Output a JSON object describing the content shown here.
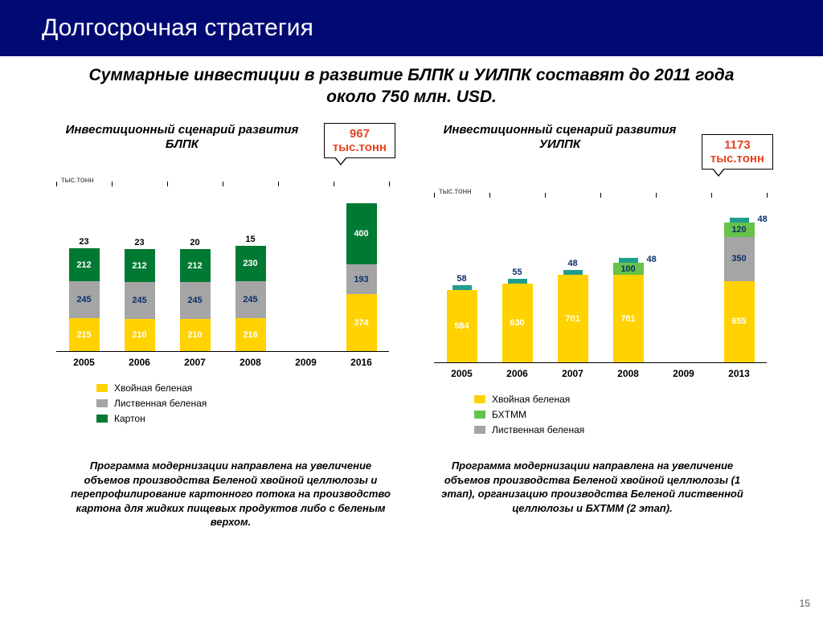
{
  "title": "Долгосрочная стратегия",
  "subtitle": "Суммарные инвестиции в развитие БЛПК и УИЛПК составят до 2011 года около 750 млн. USD.",
  "pagenum": "15",
  "colors": {
    "yellow": "#ffd200",
    "grey": "#a5a5a5",
    "dgreen": "#007a33",
    "lgreen": "#66c24a",
    "teal": "#1f9e8e",
    "navy": "#0b2f6b",
    "axis": "#000000",
    "label_white": "#ffffff",
    "label_navy": "#0b2f6b",
    "label_black": "#000000",
    "callout_text": "#e4451f",
    "title_bg": "#000a72"
  },
  "chart_left": {
    "title": "Инвестиционный сценарий развития БЛПК",
    "callout_value": "967",
    "callout_unit": "тыс.тонн",
    "ylabel": "тыс.тонн",
    "scale": 0.19,
    "categories": [
      "2005",
      "2006",
      "2007",
      "2008",
      "2009",
      "2016"
    ],
    "bars": [
      {
        "cat": "2005",
        "segs": [
          {
            "k": "yellow",
            "v": 215,
            "t": "215",
            "lc": "label_white"
          },
          {
            "k": "grey",
            "v": 245,
            "t": "245",
            "lc": "label_navy"
          },
          {
            "k": "dgreen",
            "v": 212,
            "t": "212",
            "lc": "label_white"
          }
        ],
        "top": {
          "v": 23,
          "t": "23"
        }
      },
      {
        "cat": "2006",
        "segs": [
          {
            "k": "yellow",
            "v": 210,
            "t": "210",
            "lc": "label_white"
          },
          {
            "k": "grey",
            "v": 245,
            "t": "245",
            "lc": "label_navy"
          },
          {
            "k": "dgreen",
            "v": 212,
            "t": "212",
            "lc": "label_white"
          }
        ],
        "top": {
          "v": 23,
          "t": "23"
        }
      },
      {
        "cat": "2007",
        "segs": [
          {
            "k": "yellow",
            "v": 210,
            "t": "210",
            "lc": "label_white"
          },
          {
            "k": "grey",
            "v": 245,
            "t": "245",
            "lc": "label_navy"
          },
          {
            "k": "dgreen",
            "v": 212,
            "t": "212",
            "lc": "label_white"
          }
        ],
        "top": {
          "v": 20,
          "t": "20"
        }
      },
      {
        "cat": "2008",
        "segs": [
          {
            "k": "yellow",
            "v": 216,
            "t": "216",
            "lc": "label_white"
          },
          {
            "k": "grey",
            "v": 245,
            "t": "245",
            "lc": "label_navy"
          },
          {
            "k": "dgreen",
            "v": 230,
            "t": "230",
            "lc": "label_white"
          }
        ],
        "top": {
          "v": 15,
          "t": "15"
        }
      },
      {
        "cat": "2009",
        "segs": []
      },
      {
        "cat": "2016",
        "segs": [
          {
            "k": "yellow",
            "v": 374,
            "t": "374",
            "lc": "label_white"
          },
          {
            "k": "grey",
            "v": 193,
            "t": "193",
            "lc": "label_navy"
          },
          {
            "k": "dgreen",
            "v": 400,
            "t": "400",
            "lc": "label_white"
          }
        ]
      }
    ],
    "legend": [
      {
        "k": "yellow",
        "t": "Хвойная беленая"
      },
      {
        "k": "grey",
        "t": "Лиственная беленая"
      },
      {
        "k": "dgreen",
        "t": "Картон"
      }
    ]
  },
  "chart_right": {
    "title": "Инвестиционный сценарий развития УИЛПК",
    "callout_value": "1173",
    "callout_unit": "тыс.тонн",
    "ylabel": "тыс.тонн",
    "scale": 0.155,
    "categories": [
      "2005",
      "2006",
      "2007",
      "2008",
      "2009",
      "2013"
    ],
    "bars": [
      {
        "cat": "2005",
        "segs": [
          {
            "k": "yellow",
            "v": 584,
            "t": "584",
            "lc": "label_white"
          }
        ],
        "cap": {
          "k": "teal",
          "t": "58"
        }
      },
      {
        "cat": "2006",
        "segs": [
          {
            "k": "yellow",
            "v": 630,
            "t": "630",
            "lc": "label_white"
          }
        ],
        "cap": {
          "k": "teal",
          "t": "55"
        }
      },
      {
        "cat": "2007",
        "segs": [
          {
            "k": "yellow",
            "v": 701,
            "t": "701",
            "lc": "label_white"
          }
        ],
        "cap": {
          "k": "teal",
          "t": "48"
        }
      },
      {
        "cat": "2008",
        "segs": [
          {
            "k": "yellow",
            "v": 701,
            "t": "701",
            "lc": "label_white"
          },
          {
            "k": "lgreen",
            "v": 100,
            "t": "100",
            "lc": "label_navy"
          }
        ],
        "cap": {
          "k": "teal",
          "t": "48",
          "side": "48"
        }
      },
      {
        "cat": "2009",
        "segs": []
      },
      {
        "cat": "2013",
        "segs": [
          {
            "k": "yellow",
            "v": 655,
            "t": "655",
            "lc": "label_white"
          },
          {
            "k": "grey",
            "v": 350,
            "t": "350",
            "lc": "label_navy"
          },
          {
            "k": "lgreen",
            "v": 120,
            "t": "120",
            "lc": "label_navy"
          }
        ],
        "cap": {
          "k": "teal",
          "t": "48",
          "side": "48"
        }
      }
    ],
    "legend": [
      {
        "k": "yellow",
        "t": "Хвойная беленая"
      },
      {
        "k": "lgreen",
        "t": "БХТММ"
      },
      {
        "k": "grey",
        "t": "Лиственная беленая"
      }
    ]
  },
  "foot_left": "Программа модернизации направлена на увеличение объемов производства Беленой хвойной целлюлозы и перепрофилирование картонного потока на производство картона для жидких пищевых продуктов либо с беленым верхом.",
  "foot_right": "Программа модернизации направлена на увеличение объемов производства Беленой хвойной целлюлозы (1 этап), организацию производства Беленой лиственной целлюлозы и БХТММ (2 этап)."
}
